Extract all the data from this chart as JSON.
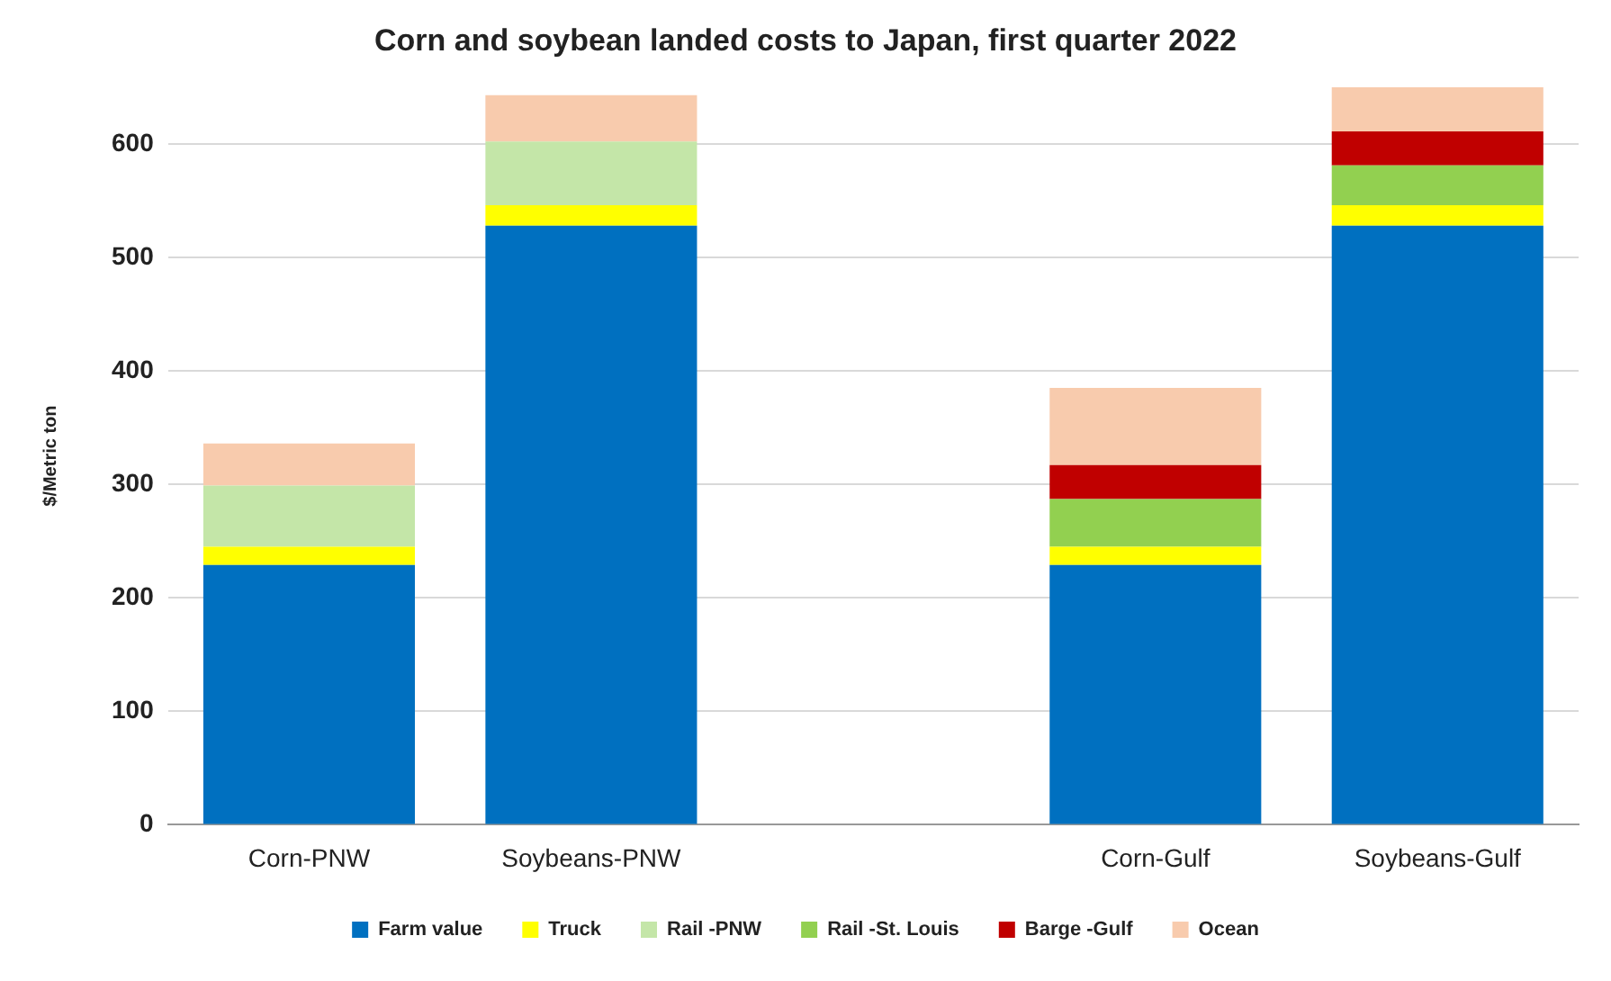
{
  "chart_data": {
    "type": "bar",
    "title": "Corn and soybean landed costs to Japan, first quarter 2022",
    "ylabel": "$/Metric ton",
    "categories": [
      "Corn-PNW",
      "Soybeans-PNW",
      null,
      "Corn-Gulf",
      "Soybeans-Gulf"
    ],
    "stacked": true,
    "ylim": [
      0,
      650
    ],
    "yticks": [
      0,
      100,
      200,
      300,
      400,
      500,
      600
    ],
    "grid": "y",
    "legend": "bottom",
    "series": [
      {
        "name": "Farm value",
        "color": "#0070c0",
        "values": [
          229,
          528,
          null,
          229,
          528
        ]
      },
      {
        "name": "Truck",
        "color": "#ffff00",
        "values": [
          16,
          18,
          null,
          16,
          18
        ]
      },
      {
        "name": "Rail -PNW",
        "color": "#c4e6a8",
        "values": [
          54,
          56,
          null,
          null,
          null
        ]
      },
      {
        "name": "Rail -St. Louis",
        "color": "#92d050",
        "values": [
          null,
          null,
          null,
          42,
          35
        ]
      },
      {
        "name": "Barge -Gulf",
        "color": "#c00000",
        "values": [
          null,
          null,
          null,
          30,
          30
        ]
      },
      {
        "name": "Ocean",
        "color": "#f8cbad",
        "values": [
          37,
          41,
          null,
          68,
          39
        ]
      }
    ]
  }
}
